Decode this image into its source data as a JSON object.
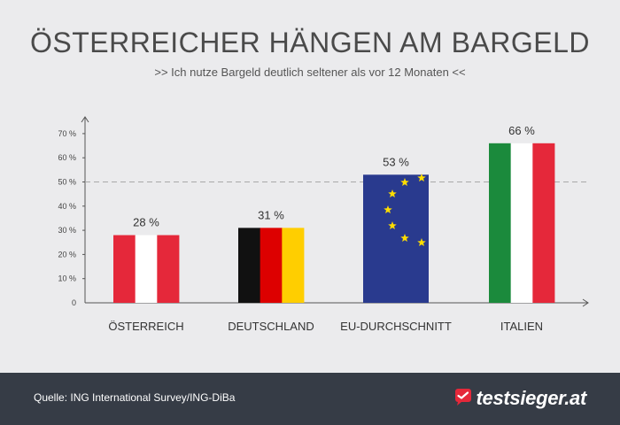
{
  "title": "ÖSTERREICHER HÄNGEN AM BARGELD",
  "subtitle": ">> Ich nutze Bargeld deutlich seltener als vor 12 Monaten <<",
  "footer": {
    "source": "Quelle: ING International Survey/ING-DiBa",
    "brand": "testsieger.at",
    "brand_icon": "testsieger-logo-icon",
    "background": "#363c46"
  },
  "colors": {
    "background": "#ebebed",
    "austria_red": "#e5283a",
    "germany_black": "#111111",
    "germany_red": "#dd0000",
    "germany_gold": "#ffce00",
    "eu_blue": "#293a8e",
    "eu_star": "#ffdd00",
    "italy_green": "#1b8a3c",
    "italy_red": "#e5283a",
    "reference_line": "#a8a8a8"
  },
  "chart_data": {
    "type": "bar",
    "title": "ÖSTERREICHER HÄNGEN AM BARGELD",
    "subtitle": ">> Ich nutze Bargeld deutlich seltener als vor 12 Monaten <<",
    "categories": [
      "ÖSTERREICH",
      "DEUTSCHLAND",
      "EU-DURCHSCHNITT",
      "ITALIEN"
    ],
    "values": [
      28,
      31,
      53,
      66
    ],
    "value_labels": [
      "28 %",
      "31 %",
      "53 %",
      "66 %"
    ],
    "flags": [
      "austria",
      "germany",
      "eu",
      "italy"
    ],
    "yticks": [
      "0",
      "10 %",
      "20 %",
      "30 %",
      "40 %",
      "50 %",
      "60 %",
      "70 %"
    ],
    "ytick_values": [
      0,
      10,
      20,
      30,
      40,
      50,
      60,
      70
    ],
    "ylim": [
      0,
      75
    ],
    "reference_line": 50,
    "xlabel": "",
    "ylabel": "",
    "grid": false,
    "legend": "none"
  }
}
